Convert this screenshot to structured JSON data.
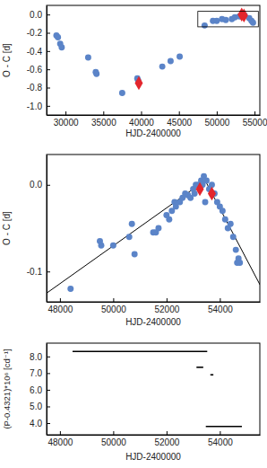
{
  "chart_data": [
    {
      "type": "scatter",
      "x_label": "HJD-2400000",
      "y_label": "O - C [d]",
      "xlim": [
        27500,
        55700
      ],
      "ylim": [
        -1.1,
        0.1
      ],
      "xticks": [
        30000,
        35000,
        40000,
        45000,
        50000,
        55000
      ],
      "yticks": [
        {
          "value": -1.0,
          "label": "-1.0"
        },
        {
          "value": -0.8,
          "label": "-0.8"
        },
        {
          "value": -0.6,
          "label": "-0.6"
        },
        {
          "value": -0.4,
          "label": "-0.4"
        },
        {
          "value": -0.2,
          "label": "-0.2"
        },
        {
          "value": 0.0,
          "label": "0.0"
        }
      ],
      "series": [
        {
          "type": "scatter",
          "marker": "circle",
          "color": "#5b84c8",
          "x": [
            28800,
            29000,
            29300,
            29500,
            33000,
            34000,
            34100,
            37500,
            39500,
            39600,
            42800,
            43900,
            45100,
            48400,
            49500,
            50000,
            50700,
            51200,
            52000,
            52400,
            53000,
            53300,
            53700,
            54300,
            54600,
            54800
          ],
          "values": [
            -0.23,
            -0.25,
            -0.32,
            -0.36,
            -0.47,
            -0.63,
            -0.65,
            -0.86,
            -0.7,
            -0.72,
            -0.57,
            -0.51,
            -0.46,
            -0.12,
            -0.07,
            -0.07,
            -0.05,
            -0.06,
            -0.05,
            -0.03,
            -0.02,
            0.0,
            -0.01,
            -0.04,
            -0.07,
            -0.09
          ]
        },
        {
          "type": "scatter",
          "marker": "diamond",
          "color": "#e3262d",
          "x": [
            39700,
            53300,
            53600
          ],
          "values": [
            -0.75,
            0.0,
            -0.01
          ]
        }
      ]
    },
    {
      "type": "scatter",
      "x_label": "HJD-2400000",
      "y_label": "O - C [d]",
      "xlim": [
        47500,
        55500
      ],
      "ylim": [
        -0.135,
        0.035
      ],
      "xticks": [
        48000,
        50000,
        52000,
        54000
      ],
      "yticks": [
        {
          "value": -0.1,
          "label": "-0.1"
        },
        {
          "value": 0.0,
          "label": "0.0"
        }
      ],
      "series": [
        {
          "type": "line",
          "color": "#000000",
          "line_style": "solid",
          "x": [
            47500,
            53450
          ],
          "values": [
            -0.125,
            0.005
          ]
        },
        {
          "type": "line",
          "color": "#000000",
          "line_style": "solid",
          "x": [
            53450,
            55500
          ],
          "values": [
            0.005,
            -0.115
          ]
        },
        {
          "type": "scatter",
          "marker": "circle",
          "color": "#5b84c8",
          "x": [
            48400,
            49500,
            49550,
            50000,
            50600,
            50700,
            50800,
            51500,
            51600,
            51700,
            52000,
            52100,
            52200,
            52300,
            52350,
            52500,
            52600,
            52700,
            52800,
            52900,
            53000,
            53050,
            53100,
            53200,
            53300,
            53350,
            53400,
            53450,
            53500,
            53600,
            53700,
            53800,
            53900,
            54000,
            54100,
            54200,
            54300,
            54400,
            54500,
            54600,
            54650,
            54700,
            54750
          ],
          "values": [
            -0.12,
            -0.065,
            -0.07,
            -0.07,
            -0.06,
            -0.045,
            -0.08,
            -0.055,
            -0.055,
            -0.05,
            -0.035,
            -0.04,
            -0.03,
            -0.02,
            -0.025,
            -0.02,
            -0.015,
            -0.01,
            -0.012,
            -0.015,
            -0.005,
            -0.01,
            0.0,
            0.0,
            0.005,
            0.0,
            0.01,
            -0.02,
            0.005,
            -0.005,
            0.0,
            -0.01,
            -0.02,
            -0.025,
            -0.03,
            -0.04,
            -0.05,
            -0.045,
            -0.06,
            -0.075,
            -0.09,
            -0.085,
            -0.09
          ]
        },
        {
          "type": "scatter",
          "marker": "diamond",
          "color": "#e3262d",
          "x": [
            53250,
            53700
          ],
          "values": [
            -0.005,
            -0.01
          ]
        }
      ]
    },
    {
      "type": "line",
      "x_label": "HJD-2400000",
      "y_label": "(P-0.4321)*10⁶ [cd⁻¹]",
      "xlim": [
        47500,
        55500
      ],
      "ylim": [
        3.3,
        8.8
      ],
      "xticks": [
        48000,
        50000,
        52000,
        54000
      ],
      "yticks": [
        {
          "value": 4.0,
          "label": "4.0"
        },
        {
          "value": 5.0,
          "label": "5.0"
        },
        {
          "value": 6.0,
          "label": "6.0"
        },
        {
          "value": 7.0,
          "label": "7.0"
        },
        {
          "value": 8.0,
          "label": "8.0"
        }
      ],
      "series": [
        {
          "type": "line",
          "color": "#000000",
          "line_style": "solid",
          "x": [
            48500,
            53500
          ],
          "values": [
            8.3,
            8.3
          ]
        },
        {
          "type": "line",
          "color": "#000000",
          "line_style": "solid",
          "x": [
            53150,
            53350
          ],
          "values": [
            7.35,
            7.35
          ]
        },
        {
          "type": "line",
          "color": "#000000",
          "line_style": "solid",
          "x": [
            53670,
            53730
          ],
          "values": [
            6.9,
            6.9
          ]
        },
        {
          "type": "line",
          "color": "#000000",
          "line_style": "solid",
          "x": [
            53500,
            54800
          ],
          "values": [
            3.8,
            3.8
          ]
        }
      ]
    }
  ]
}
